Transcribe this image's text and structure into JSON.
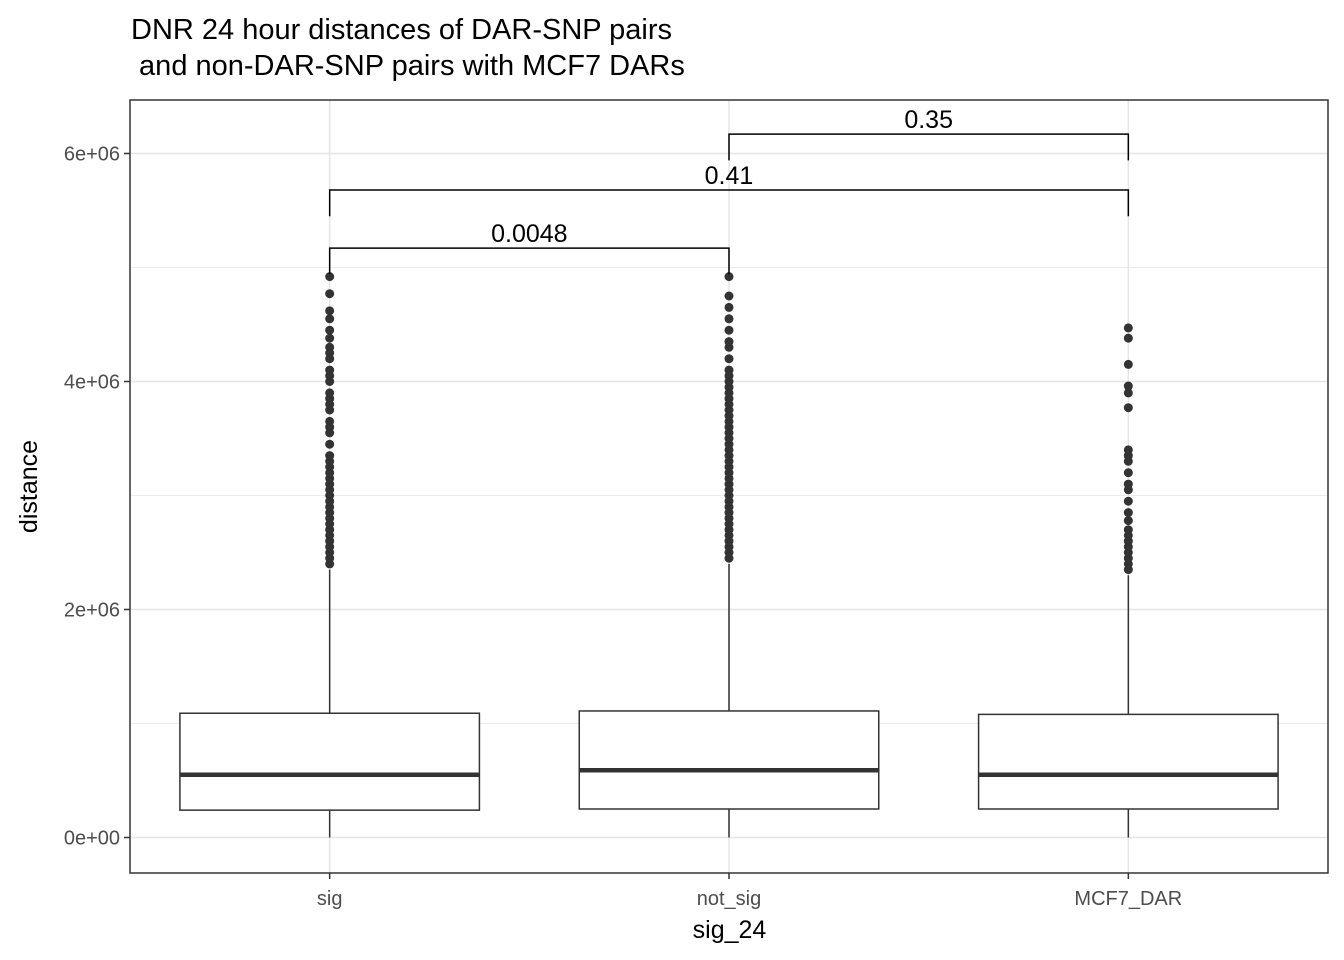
{
  "chart_data": {
    "type": "box",
    "title_line1": "DNR 24 hour distances of DAR-SNP pairs",
    "title_line2": " and non-DAR-SNP pairs with MCF7 DARs",
    "xlabel": "sig_24",
    "ylabel": "distance",
    "ylim": [
      -300000,
      6500000
    ],
    "y_ticks": [
      0,
      2000000,
      4000000,
      6000000
    ],
    "y_tick_labels": [
      "0e+00",
      "2e+06",
      "4e+06",
      "6e+06"
    ],
    "grid": true,
    "categories": [
      "sig",
      "not_sig",
      "MCF7_DAR"
    ],
    "boxes": [
      {
        "category": "sig",
        "min": 0,
        "q1": 240000,
        "median": 550000,
        "q3": 1090000,
        "whisker_high": 2350000,
        "outliers": [
          2400000,
          2450000,
          2500000,
          2550000,
          2600000,
          2650000,
          2700000,
          2750000,
          2800000,
          2850000,
          2900000,
          2950000,
          3000000,
          3050000,
          3100000,
          3150000,
          3200000,
          3250000,
          3300000,
          3350000,
          3450000,
          3550000,
          3600000,
          3650000,
          3750000,
          3800000,
          3850000,
          3900000,
          4000000,
          4050000,
          4100000,
          4200000,
          4250000,
          4300000,
          4380000,
          4450000,
          4550000,
          4620000,
          4770000,
          4920000
        ]
      },
      {
        "category": "not_sig",
        "min": 0,
        "q1": 250000,
        "median": 590000,
        "q3": 1110000,
        "whisker_high": 2400000,
        "outliers": [
          2450000,
          2500000,
          2550000,
          2600000,
          2650000,
          2700000,
          2750000,
          2800000,
          2850000,
          2900000,
          2950000,
          3000000,
          3050000,
          3100000,
          3150000,
          3200000,
          3250000,
          3300000,
          3350000,
          3400000,
          3450000,
          3500000,
          3550000,
          3600000,
          3650000,
          3700000,
          3750000,
          3800000,
          3850000,
          3900000,
          3950000,
          4000000,
          4050000,
          4100000,
          4200000,
          4300000,
          4350000,
          4450000,
          4550000,
          4650000,
          4750000,
          4920000
        ]
      },
      {
        "category": "MCF7_DAR",
        "min": 0,
        "q1": 250000,
        "median": 550000,
        "q3": 1080000,
        "whisker_high": 2300000,
        "outliers": [
          2350000,
          2400000,
          2450000,
          2500000,
          2550000,
          2600000,
          2650000,
          2700000,
          2780000,
          2850000,
          2950000,
          3050000,
          3100000,
          3200000,
          3300000,
          3350000,
          3400000,
          3770000,
          3900000,
          3960000,
          4150000,
          4380000,
          4470000
        ]
      }
    ],
    "comparisons": [
      {
        "from": "sig",
        "to": "not_sig",
        "p": "0.0048",
        "y": 5170000
      },
      {
        "from": "sig",
        "to": "MCF7_DAR",
        "p": "0.41",
        "y": 5680000
      },
      {
        "from": "not_sig",
        "to": "MCF7_DAR",
        "p": "0.35",
        "y": 6170000
      }
    ]
  }
}
